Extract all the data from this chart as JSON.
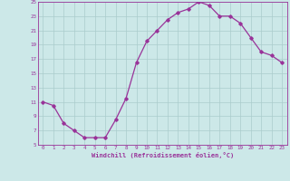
{
  "x": [
    0,
    1,
    2,
    3,
    4,
    5,
    6,
    7,
    8,
    9,
    10,
    11,
    12,
    13,
    14,
    15,
    16,
    17,
    18,
    19,
    20,
    21,
    22,
    23
  ],
  "y": [
    11,
    10.5,
    8,
    7,
    6,
    6,
    6,
    8.5,
    11.5,
    16.5,
    19.5,
    21,
    22.5,
    23.5,
    24,
    25,
    24.5,
    23,
    23,
    22,
    20,
    18,
    17.5,
    16.5
  ],
  "line_color": "#993399",
  "marker": "D",
  "marker_size": 1.8,
  "bg_color": "#cce8e8",
  "grid_color": "#aacccc",
  "xlabel": "Windchill (Refroidissement éolien,°C)",
  "xlabel_color": "#993399",
  "tick_color": "#993399",
  "ylim": [
    5,
    25
  ],
  "xlim": [
    -0.5,
    23.5
  ],
  "yticks": [
    5,
    7,
    9,
    11,
    13,
    15,
    17,
    19,
    21,
    23,
    25
  ],
  "xticks": [
    0,
    1,
    2,
    3,
    4,
    5,
    6,
    7,
    8,
    9,
    10,
    11,
    12,
    13,
    14,
    15,
    16,
    17,
    18,
    19,
    20,
    21,
    22,
    23
  ],
  "xtick_labels": [
    "0",
    "1",
    "2",
    "3",
    "4",
    "5",
    "6",
    "7",
    "8",
    "9",
    "10",
    "11",
    "12",
    "13",
    "14",
    "15",
    "16",
    "17",
    "18",
    "19",
    "20",
    "21",
    "22",
    "23"
  ],
  "ytick_labels": [
    "5",
    "7",
    "9",
    "11",
    "13",
    "15",
    "17",
    "19",
    "21",
    "23",
    "25"
  ]
}
